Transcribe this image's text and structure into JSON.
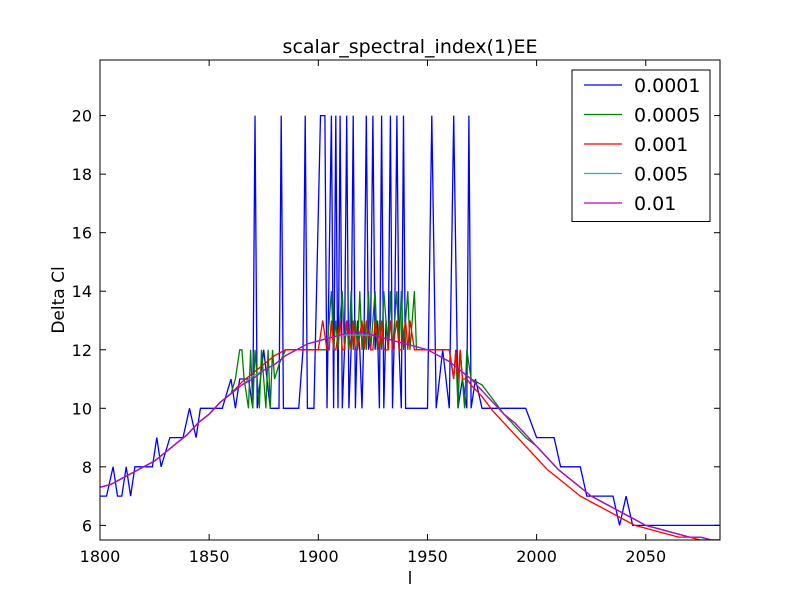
{
  "chart_data": {
    "type": "line",
    "title": "scalar_spectral_index(1)EE",
    "xlabel": "l",
    "ylabel": "Delta Cl",
    "xlim": [
      1800,
      2084
    ],
    "ylim": [
      5.5,
      21.9
    ],
    "xticks": [
      1800,
      1850,
      1900,
      1950,
      2000,
      2050
    ],
    "yticks": [
      6,
      8,
      10,
      12,
      14,
      16,
      18,
      20
    ],
    "grid": false,
    "legend_position": "top-right",
    "series": [
      {
        "name": "0.0001",
        "color": "#0000ff",
        "x": [
          1800,
          1803,
          1806,
          1808,
          1810,
          1812,
          1814,
          1816,
          1820,
          1824,
          1826,
          1828,
          1832,
          1835,
          1838,
          1841,
          1844,
          1846,
          1848,
          1852,
          1856,
          1860,
          1862,
          1864,
          1866,
          1868,
          1870,
          1871,
          1872,
          1875,
          1878,
          1882,
          1883,
          1884,
          1888,
          1891,
          1893,
          1894,
          1895,
          1898,
          1901,
          1903,
          1904,
          1906,
          1907,
          1908,
          1909,
          1910,
          1911,
          1912,
          1913,
          1914,
          1915,
          1916,
          1917,
          1918,
          1919,
          1920,
          1921,
          1922,
          1923,
          1924,
          1925,
          1926,
          1927,
          1928,
          1929,
          1930,
          1931,
          1932,
          1933,
          1934,
          1935,
          1936,
          1937,
          1938,
          1939,
          1940,
          1942,
          1945,
          1948,
          1950,
          1952,
          1954,
          1957,
          1960,
          1962,
          1964,
          1966,
          1968,
          1969,
          1970,
          1972,
          1975,
          1978,
          1981,
          1985,
          1990,
          1995,
          2000,
          2002,
          2005,
          2008,
          2011,
          2014,
          2017,
          2020,
          2023,
          2026,
          2029,
          2032,
          2035,
          2038,
          2041,
          2044,
          2047,
          2050,
          2053,
          2056,
          2059,
          2062,
          2065,
          2068,
          2071,
          2074,
          2077,
          2080,
          2084
        ],
        "y": [
          7,
          7,
          8,
          7,
          7,
          8,
          7,
          8,
          8,
          8,
          9,
          8,
          9,
          9,
          9,
          10,
          9,
          10,
          10,
          10,
          10,
          11,
          10,
          11,
          11,
          11,
          10,
          20,
          10,
          12,
          10,
          10,
          20,
          10,
          10,
          10,
          12,
          20,
          10,
          10,
          20,
          20,
          10,
          20,
          10,
          20,
          10,
          20,
          10,
          12,
          20,
          10,
          12,
          20,
          10,
          13,
          12,
          10,
          13,
          20,
          12,
          13,
          20,
          12,
          13,
          10,
          20,
          10,
          13,
          12,
          20,
          10,
          13,
          20,
          12,
          10,
          20,
          10,
          10,
          10,
          10,
          10,
          20,
          10,
          12,
          10,
          20,
          10,
          11,
          10,
          20,
          10,
          11,
          10,
          10,
          10,
          10,
          10,
          10,
          9,
          9,
          9,
          9,
          8,
          8,
          8,
          8,
          7,
          7,
          7,
          7,
          7,
          6,
          7,
          6,
          6,
          6,
          6,
          6,
          6,
          6,
          6,
          6,
          6,
          6,
          6,
          6,
          6
        ]
      },
      {
        "name": "0.0005",
        "color": "#008000",
        "x": [
          1800,
          1805,
          1810,
          1815,
          1820,
          1825,
          1830,
          1835,
          1840,
          1845,
          1850,
          1855,
          1860,
          1862,
          1864,
          1865,
          1866,
          1868,
          1869,
          1870,
          1871,
          1872,
          1873,
          1874,
          1875,
          1876,
          1877,
          1878,
          1879,
          1880,
          1882,
          1885,
          1890,
          1895,
          1900,
          1903,
          1904,
          1905,
          1906,
          1907,
          1908,
          1909,
          1910,
          1911,
          1912,
          1913,
          1914,
          1915,
          1916,
          1917,
          1918,
          1919,
          1920,
          1921,
          1922,
          1923,
          1924,
          1925,
          1926,
          1927,
          1928,
          1929,
          1930,
          1931,
          1932,
          1933,
          1934,
          1935,
          1936,
          1937,
          1938,
          1939,
          1940,
          1941,
          1942,
          1943,
          1944,
          1945,
          1946,
          1950,
          1955,
          1960,
          1962,
          1963,
          1964,
          1965,
          1966,
          1967,
          1968,
          1970,
          1975,
          1980,
          1985,
          1990,
          1995,
          2000,
          2005,
          2010,
          2015,
          2020,
          2025,
          2030,
          2035,
          2040,
          2045,
          2050,
          2055,
          2060,
          2065,
          2070,
          2075,
          2080,
          2084
        ],
        "y": [
          7.3,
          7.4,
          7.6,
          7.8,
          8.0,
          8.2,
          8.5,
          8.8,
          9.1,
          9.5,
          9.8,
          10.2,
          10.5,
          11,
          12,
          12,
          11,
          10,
          12,
          10,
          12,
          11,
          10,
          12,
          11,
          10,
          12,
          10,
          12,
          11,
          11.5,
          12,
          12,
          12,
          12,
          12,
          12,
          13,
          14,
          12,
          13,
          12,
          13,
          14,
          12,
          13,
          12,
          14,
          12,
          13,
          12,
          14,
          12,
          13,
          12,
          14,
          12,
          13,
          14,
          12,
          13,
          12,
          14,
          13,
          12,
          14,
          12,
          13,
          14,
          12,
          14,
          12,
          13,
          14,
          12,
          13,
          14,
          12,
          12,
          12,
          12,
          12,
          11,
          12,
          10,
          12,
          11,
          10,
          12,
          11,
          10.8,
          10.3,
          9.8,
          9.4,
          9,
          8.7,
          8.3,
          7.9,
          7.6,
          7.3,
          7.0,
          6.8,
          6.6,
          6.4,
          6.2,
          6.0,
          5.9,
          5.8,
          5.7,
          5.6,
          5.6,
          5.5,
          5.5
        ]
      },
      {
        "name": "0.001",
        "color": "#ff0000",
        "x": [
          1800,
          1805,
          1810,
          1815,
          1820,
          1825,
          1830,
          1835,
          1840,
          1845,
          1850,
          1855,
          1860,
          1865,
          1870,
          1875,
          1880,
          1885,
          1890,
          1895,
          1900,
          1902,
          1904,
          1905,
          1906,
          1907,
          1908,
          1910,
          1911,
          1912,
          1913,
          1915,
          1916,
          1917,
          1918,
          1920,
          1921,
          1922,
          1924,
          1925,
          1926,
          1928,
          1929,
          1930,
          1932,
          1933,
          1934,
          1936,
          1937,
          1938,
          1940,
          1941,
          1942,
          1944,
          1945,
          1946,
          1950,
          1955,
          1960,
          1962,
          1963,
          1964,
          1965,
          1966,
          1968,
          1970,
          1975,
          1980,
          1985,
          1990,
          1995,
          2000,
          2005,
          2010,
          2015,
          2020,
          2025,
          2030,
          2035,
          2040,
          2045,
          2050,
          2055,
          2060,
          2065,
          2070,
          2075,
          2080,
          2084
        ],
        "y": [
          7.3,
          7.4,
          7.6,
          7.8,
          8.0,
          8.2,
          8.5,
          8.8,
          9.1,
          9.5,
          9.8,
          10.2,
          10.5,
          10.9,
          11.2,
          11.5,
          11.8,
          12,
          12,
          12,
          12,
          13,
          12,
          12,
          13,
          12,
          12,
          13,
          12,
          12,
          13,
          12,
          13,
          12,
          12,
          13,
          12,
          13,
          12,
          12,
          13,
          12,
          13,
          12,
          12,
          13,
          12,
          13,
          12,
          12,
          13,
          12,
          13,
          12,
          12,
          12,
          12,
          12,
          12,
          11,
          12,
          11,
          12,
          11,
          11,
          10.8,
          10.4,
          9.9,
          9.5,
          9.1,
          8.7,
          8.3,
          7.9,
          7.6,
          7.3,
          7.0,
          6.8,
          6.6,
          6.4,
          6.2,
          6.0,
          5.9,
          5.8,
          5.7,
          5.6,
          5.6,
          5.5,
          5.5,
          5.5
        ]
      },
      {
        "name": "0.005",
        "color": "#00bfbf",
        "x": [
          1800,
          1805,
          1810,
          1815,
          1820,
          1825,
          1830,
          1835,
          1840,
          1845,
          1850,
          1855,
          1860,
          1865,
          1870,
          1875,
          1880,
          1885,
          1890,
          1895,
          1900,
          1905,
          1910,
          1915,
          1920,
          1925,
          1930,
          1935,
          1940,
          1945,
          1950,
          1955,
          1960,
          1965,
          1970,
          1975,
          1980,
          1985,
          1990,
          1995,
          2000,
          2005,
          2010,
          2015,
          2020,
          2025,
          2030,
          2035,
          2040,
          2045,
          2050,
          2055,
          2060,
          2065,
          2070,
          2075,
          2080,
          2084
        ],
        "y": [
          7.3,
          7.4,
          7.6,
          7.8,
          8.0,
          8.2,
          8.5,
          8.8,
          9.1,
          9.5,
          9.8,
          10.2,
          10.5,
          10.8,
          11.1,
          11.3,
          11.5,
          11.8,
          12,
          12.2,
          12.3,
          12.4,
          12.5,
          12.5,
          12.5,
          12.5,
          12.4,
          12.3,
          12.2,
          12.1,
          12,
          11.8,
          11.6,
          11.3,
          11,
          10.6,
          10.2,
          9.8,
          9.5,
          9.1,
          8.7,
          8.3,
          7.9,
          7.6,
          7.3,
          7.0,
          6.8,
          6.6,
          6.4,
          6.2,
          6.0,
          5.9,
          5.8,
          5.7,
          5.6,
          5.6,
          5.5,
          5.5
        ]
      },
      {
        "name": "0.01",
        "color": "#bf00bf",
        "x": [
          1800,
          1805,
          1810,
          1815,
          1820,
          1825,
          1830,
          1835,
          1840,
          1845,
          1850,
          1855,
          1860,
          1865,
          1870,
          1875,
          1880,
          1885,
          1890,
          1895,
          1900,
          1905,
          1910,
          1915,
          1920,
          1925,
          1930,
          1935,
          1940,
          1945,
          1950,
          1955,
          1960,
          1965,
          1970,
          1975,
          1980,
          1985,
          1990,
          1995,
          2000,
          2005,
          2010,
          2015,
          2020,
          2025,
          2030,
          2035,
          2040,
          2045,
          2050,
          2055,
          2060,
          2065,
          2070,
          2075,
          2080,
          2084
        ],
        "y": [
          7.3,
          7.4,
          7.6,
          7.8,
          8.0,
          8.2,
          8.5,
          8.8,
          9.1,
          9.5,
          9.8,
          10.2,
          10.5,
          10.8,
          11.0,
          11.3,
          11.5,
          11.8,
          12,
          12.2,
          12.3,
          12.4,
          12.5,
          12.6,
          12.6,
          12.5,
          12.4,
          12.3,
          12.2,
          12.1,
          12,
          11.8,
          11.6,
          11.3,
          11,
          10.6,
          10.2,
          9.8,
          9.5,
          9.1,
          8.7,
          8.3,
          7.9,
          7.6,
          7.3,
          7.0,
          6.8,
          6.6,
          6.4,
          6.2,
          6.0,
          5.9,
          5.8,
          5.7,
          5.6,
          5.6,
          5.5,
          5.5
        ]
      }
    ]
  }
}
